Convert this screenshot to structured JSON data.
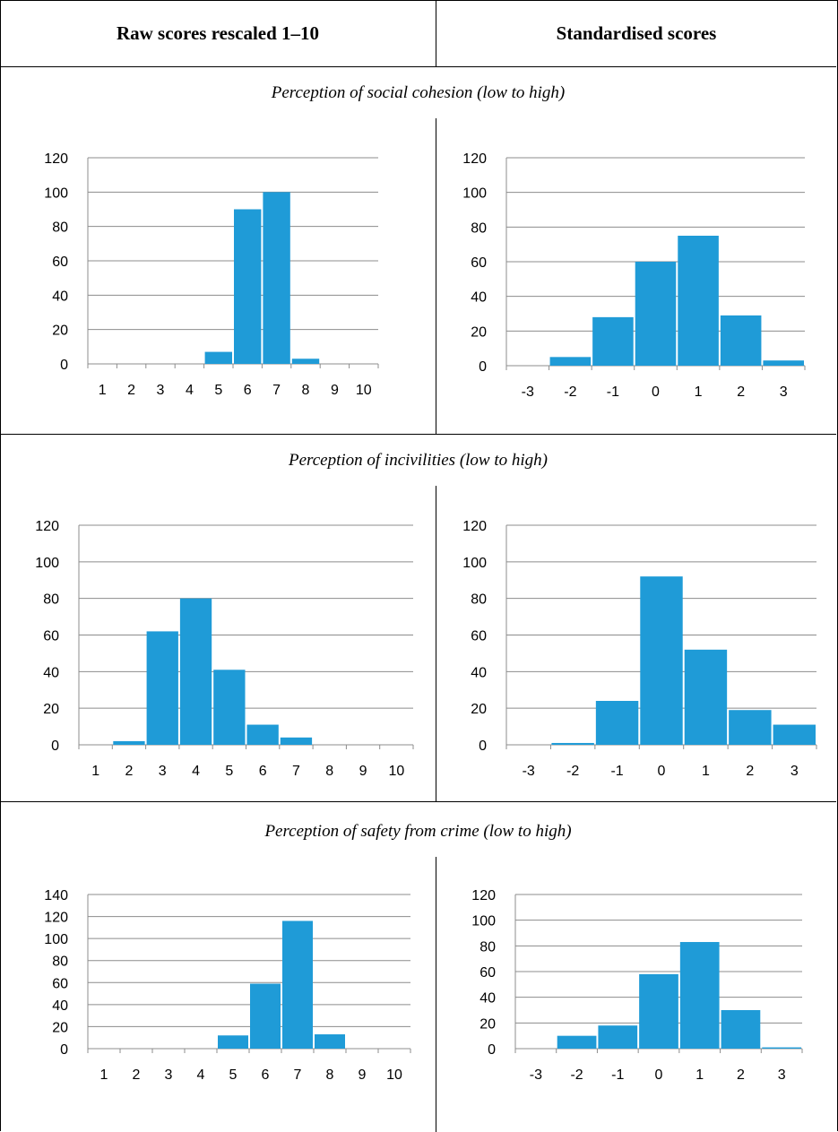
{
  "header": {
    "left": "Raw scores rescaled 1–10",
    "right": "Standardised scores"
  },
  "sections": [
    {
      "caption": "Perception of social cohesion (low to high)"
    },
    {
      "caption": "Perception of incivilities (low to high)"
    },
    {
      "caption": "Perception of safety from crime (low to high)"
    }
  ],
  "colors": {
    "bar": "#1f9bd7",
    "grid": "#8c8c8c"
  },
  "chart_data": [
    {
      "type": "bar",
      "panel": "social-cohesion-raw",
      "categories": [
        "1",
        "2",
        "3",
        "4",
        "5",
        "6",
        "7",
        "8",
        "9",
        "10"
      ],
      "values": [
        0,
        0,
        0,
        0,
        7,
        90,
        100,
        3,
        0,
        0
      ],
      "ylim": [
        0,
        120
      ],
      "yticks": [
        0,
        20,
        40,
        60,
        80,
        100,
        120
      ],
      "grid": true
    },
    {
      "type": "bar",
      "panel": "social-cohesion-standardised",
      "categories": [
        "-3",
        "-2",
        "-1",
        "0",
        "1",
        "2",
        "3"
      ],
      "values": [
        0,
        5,
        28,
        60,
        75,
        29,
        3
      ],
      "ylim": [
        0,
        120
      ],
      "yticks": [
        0,
        20,
        40,
        60,
        80,
        100,
        120
      ],
      "grid": true
    },
    {
      "type": "bar",
      "panel": "incivilities-raw",
      "categories": [
        "1",
        "2",
        "3",
        "4",
        "5",
        "6",
        "7",
        "8",
        "9",
        "10"
      ],
      "values": [
        0,
        2,
        62,
        80,
        41,
        11,
        4,
        0,
        0,
        0
      ],
      "ylim": [
        0,
        120
      ],
      "yticks": [
        0,
        20,
        40,
        60,
        80,
        100,
        120
      ],
      "grid": true
    },
    {
      "type": "bar",
      "panel": "incivilities-standardised",
      "categories": [
        "-3",
        "-2",
        "-1",
        "0",
        "1",
        "2",
        "3"
      ],
      "values": [
        0,
        1,
        24,
        92,
        52,
        19,
        11
      ],
      "ylim": [
        0,
        120
      ],
      "yticks": [
        0,
        20,
        40,
        60,
        80,
        100,
        120
      ],
      "grid": true
    },
    {
      "type": "bar",
      "panel": "safety-raw",
      "categories": [
        "1",
        "2",
        "3",
        "4",
        "5",
        "6",
        "7",
        "8",
        "9",
        "10"
      ],
      "values": [
        0,
        0,
        0,
        0,
        12,
        59,
        116,
        13,
        0,
        0
      ],
      "ylim": [
        0,
        140
      ],
      "yticks": [
        0,
        20,
        40,
        60,
        80,
        100,
        120,
        140
      ],
      "grid": true
    },
    {
      "type": "bar",
      "panel": "safety-standardised",
      "categories": [
        "-3",
        "-2",
        "-1",
        "0",
        "1",
        "2",
        "3"
      ],
      "values": [
        0,
        10,
        18,
        58,
        83,
        30,
        1
      ],
      "ylim": [
        0,
        120
      ],
      "yticks": [
        0,
        20,
        40,
        60,
        80,
        100,
        120
      ],
      "grid": true
    }
  ]
}
